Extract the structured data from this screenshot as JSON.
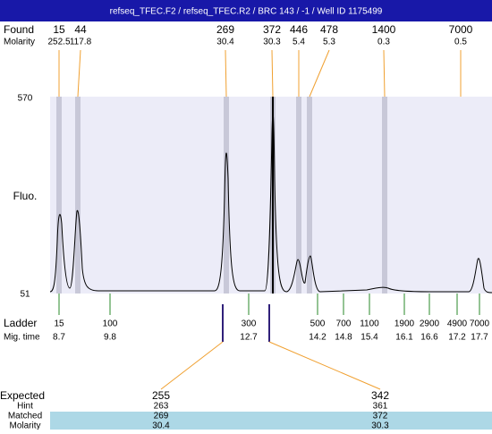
{
  "header": {
    "title": "refseq_TFEC.F2 / refseq_TFEC.R2 / BRC 143 / -1 / Well ID 1175499"
  },
  "found": {
    "label": "Found",
    "values": [
      "15",
      "44",
      "269",
      "372",
      "446",
      "478",
      "1400",
      "7000"
    ]
  },
  "molarity": {
    "label": "Molarity",
    "values": [
      "252.5",
      "117.8",
      "30.4",
      "30.3",
      "5.4",
      "5.3",
      "0.3",
      "0.5"
    ]
  },
  "axis": {
    "label": "Fluo.",
    "max": "570",
    "min": "51"
  },
  "ladder": {
    "label": "Ladder",
    "values": [
      "15",
      "100",
      "300",
      "500",
      "700",
      "1100",
      "1900",
      "2900",
      "4900",
      "7000"
    ]
  },
  "mig_time": {
    "label": "Mig. time",
    "values": [
      "8.7",
      "9.8",
      "12.7",
      "14.2",
      "14.8",
      "15.4",
      "16.1",
      "16.6",
      "17.2",
      "17.7"
    ]
  },
  "expected": {
    "label": "Expected",
    "values": [
      "255",
      "342"
    ]
  },
  "hint": {
    "label": "Hint",
    "values": [
      "263",
      "361"
    ]
  },
  "matched": {
    "label": "Matched",
    "values": [
      "269",
      "372"
    ]
  },
  "matched_molarity": {
    "label": "Molarity",
    "values": [
      "30.4",
      "30.3"
    ]
  }
}
